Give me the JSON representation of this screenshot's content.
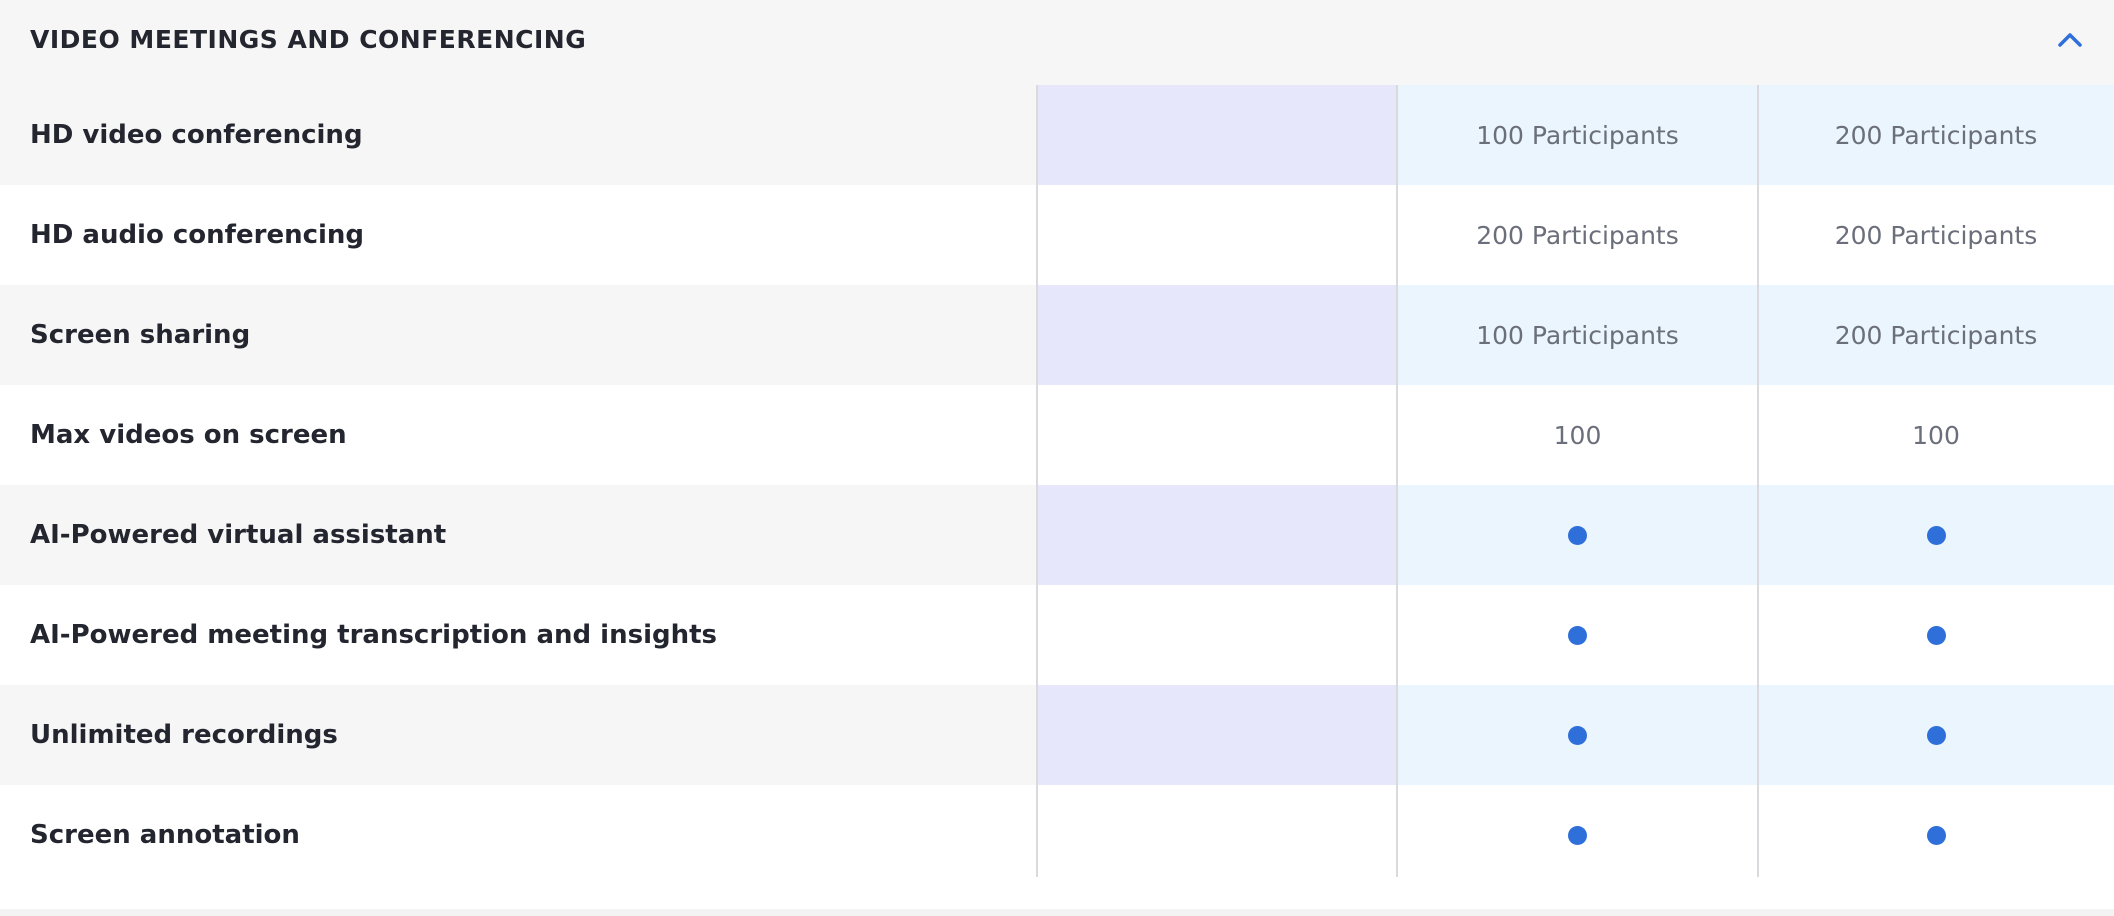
{
  "section": {
    "title": "VIDEO MEETINGS AND CONFERENCING",
    "toggle_icon": "chevron-up-icon",
    "accent_color": "#2f6fd9"
  },
  "rows": [
    {
      "label": "HD video conferencing",
      "c1": "",
      "c2": "100 Participants",
      "c3": "200 Participants"
    },
    {
      "label": "HD audio conferencing",
      "c1": "",
      "c2": "200 Participants",
      "c3": "200 Participants"
    },
    {
      "label": "Screen sharing",
      "c1": "",
      "c2": "100 Participants",
      "c3": "200 Participants"
    },
    {
      "label": "Max videos on screen",
      "c1": "",
      "c2": "100",
      "c3": "100"
    },
    {
      "label": "AI-Powered virtual assistant",
      "c1": "",
      "c2": "included-dot",
      "c3": "included-dot"
    },
    {
      "label": "AI-Powered meeting transcription and insights",
      "c1": "",
      "c2": "included-dot",
      "c3": "included-dot"
    },
    {
      "label": "Unlimited recordings",
      "c1": "",
      "c2": "included-dot",
      "c3": "included-dot"
    },
    {
      "label": "Screen annotation",
      "c1": "",
      "c2": "included-dot",
      "c3": "included-dot"
    }
  ]
}
